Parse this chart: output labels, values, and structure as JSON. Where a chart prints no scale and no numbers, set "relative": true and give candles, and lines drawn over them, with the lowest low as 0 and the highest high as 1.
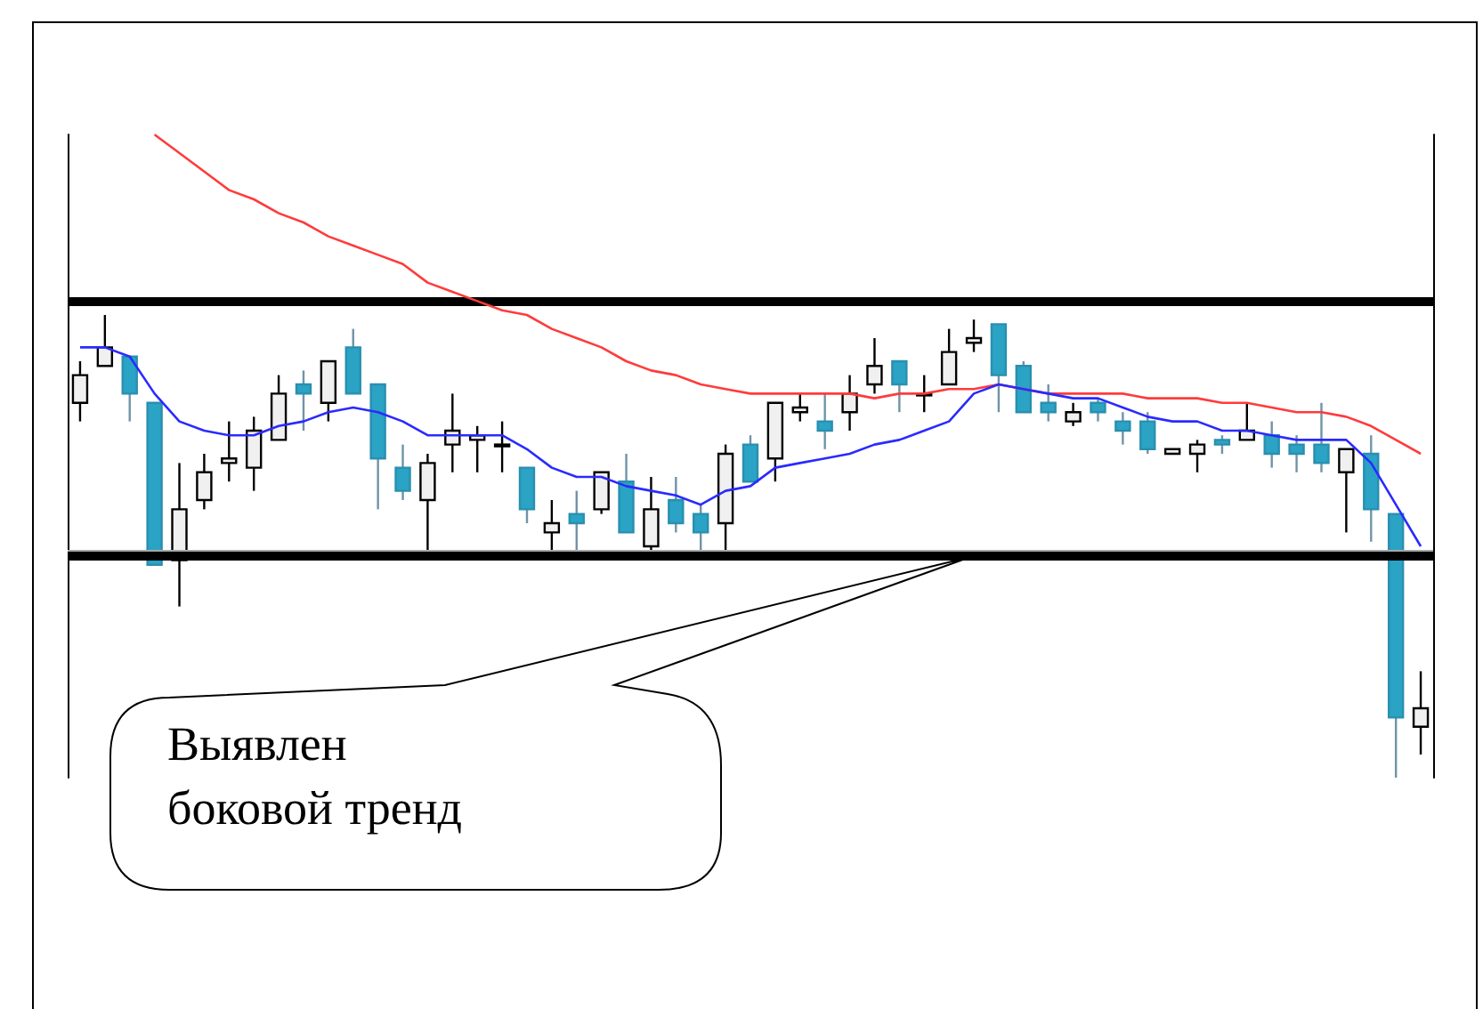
{
  "chart_data": [
    {
      "type": "candlestick",
      "relative": true,
      "categories": [
        null,
        null,
        null,
        null,
        null,
        null,
        null,
        null,
        null,
        null,
        null,
        null,
        null,
        null,
        null,
        null,
        null,
        null,
        null,
        null,
        null,
        null,
        null,
        null,
        null,
        null,
        null,
        null,
        null,
        null,
        null,
        null,
        null,
        null,
        null,
        null,
        null,
        null,
        null,
        null,
        null,
        null,
        null,
        null,
        null,
        null,
        null,
        null,
        null,
        null,
        null,
        null,
        null,
        null,
        null
      ],
      "ohlc": [
        [
          0.81,
          0.9,
          0.77,
          0.87
        ],
        [
          0.89,
          1.0,
          0.89,
          0.93
        ],
        [
          0.91,
          0.91,
          0.77,
          0.83
        ],
        [
          0.81,
          0.81,
          0.46,
          0.46
        ],
        [
          0.47,
          0.68,
          0.37,
          0.58
        ],
        [
          0.6,
          0.7,
          0.58,
          0.66
        ],
        [
          0.68,
          0.77,
          0.64,
          0.69
        ],
        [
          0.67,
          0.78,
          0.62,
          0.75
        ],
        [
          0.73,
          0.87,
          0.73,
          0.83
        ],
        [
          0.85,
          0.88,
          0.75,
          0.83
        ],
        [
          0.81,
          0.9,
          0.77,
          0.9
        ],
        [
          0.93,
          0.97,
          0.83,
          0.83
        ],
        [
          0.85,
          0.85,
          0.58,
          0.69
        ],
        [
          0.67,
          0.72,
          0.6,
          0.62
        ],
        [
          0.6,
          0.7,
          0.49,
          0.68
        ],
        [
          0.72,
          0.83,
          0.66,
          0.75
        ],
        [
          0.73,
          0.76,
          0.66,
          0.74
        ],
        [
          0.72,
          0.77,
          0.66,
          0.72
        ],
        [
          0.67,
          0.67,
          0.55,
          0.58
        ],
        [
          0.53,
          0.6,
          0.49,
          0.55
        ],
        [
          0.57,
          0.62,
          0.49,
          0.55
        ],
        [
          0.58,
          0.66,
          0.57,
          0.66
        ],
        [
          0.64,
          0.7,
          0.53,
          0.53
        ],
        [
          0.5,
          0.65,
          0.49,
          0.58
        ],
        [
          0.6,
          0.65,
          0.53,
          0.55
        ],
        [
          0.57,
          0.59,
          0.49,
          0.53
        ],
        [
          0.55,
          0.72,
          0.49,
          0.7
        ],
        [
          0.72,
          0.74,
          0.64,
          0.64
        ],
        [
          0.69,
          0.81,
          0.64,
          0.81
        ],
        [
          0.79,
          0.83,
          0.77,
          0.8
        ],
        [
          0.77,
          0.83,
          0.71,
          0.75
        ],
        [
          0.79,
          0.87,
          0.75,
          0.83
        ],
        [
          0.85,
          0.95,
          0.83,
          0.89
        ],
        [
          0.9,
          0.9,
          0.79,
          0.85
        ],
        [
          0.83,
          0.87,
          0.79,
          0.83
        ],
        [
          0.85,
          0.97,
          0.85,
          0.92
        ],
        [
          0.94,
          0.99,
          0.92,
          0.95
        ],
        [
          0.98,
          0.98,
          0.79,
          0.87
        ],
        [
          0.89,
          0.9,
          0.79,
          0.79
        ],
        [
          0.81,
          0.85,
          0.77,
          0.79
        ],
        [
          0.77,
          0.81,
          0.76,
          0.79
        ],
        [
          0.81,
          0.82,
          0.77,
          0.79
        ],
        [
          0.77,
          0.79,
          0.72,
          0.75
        ],
        [
          0.77,
          0.79,
          0.7,
          0.71
        ],
        [
          0.7,
          0.71,
          0.7,
          0.71
        ],
        [
          0.7,
          0.73,
          0.66,
          0.72
        ],
        [
          0.73,
          0.74,
          0.7,
          0.72
        ],
        [
          0.73,
          0.81,
          0.73,
          0.75
        ],
        [
          0.74,
          0.77,
          0.67,
          0.7
        ],
        [
          0.72,
          0.74,
          0.66,
          0.7
        ],
        [
          0.72,
          0.81,
          0.66,
          0.68
        ],
        [
          0.66,
          0.71,
          0.53,
          0.71
        ],
        [
          0.7,
          0.74,
          0.51,
          0.58
        ],
        [
          0.57,
          0.57,
          0.0,
          0.13
        ],
        [
          0.11,
          0.23,
          0.05,
          0.15
        ]
      ],
      "ref_lines": [
        {
          "axis": "y",
          "value": 0.49,
          "color": "#a8a8a8"
        },
        {
          "axis": "y",
          "value": 1.03,
          "color": "#000000"
        },
        {
          "axis": "y",
          "value": 0.48,
          "color": "#000000"
        }
      ],
      "series": [
        {
          "type": "line",
          "color": "#ff3b3b",
          "values": [
            null,
            null,
            null,
            1.39,
            1.35,
            1.31,
            1.27,
            1.25,
            1.22,
            1.2,
            1.17,
            1.15,
            1.13,
            1.11,
            1.07,
            1.05,
            1.03,
            1.01,
            1.0,
            0.97,
            0.95,
            0.93,
            0.9,
            0.88,
            0.87,
            0.85,
            0.84,
            0.83,
            0.83,
            0.83,
            0.83,
            0.83,
            0.82,
            0.83,
            0.83,
            0.84,
            0.84,
            0.85,
            0.84,
            0.83,
            0.83,
            0.83,
            0.83,
            0.82,
            0.82,
            0.82,
            0.81,
            0.81,
            0.8,
            0.79,
            0.79,
            0.78,
            0.76,
            0.73,
            0.7
          ]
        },
        {
          "type": "line",
          "color": "#2a2aff",
          "values": [
            0.93,
            0.93,
            0.91,
            0.83,
            0.77,
            0.75,
            0.74,
            0.74,
            0.76,
            0.77,
            0.79,
            0.8,
            0.79,
            0.77,
            0.74,
            0.74,
            0.74,
            0.74,
            0.71,
            0.67,
            0.65,
            0.65,
            0.63,
            0.62,
            0.61,
            0.59,
            0.62,
            0.63,
            0.67,
            0.68,
            0.69,
            0.7,
            0.72,
            0.73,
            0.75,
            0.77,
            0.83,
            0.85,
            0.84,
            0.83,
            0.82,
            0.82,
            0.8,
            0.78,
            0.77,
            0.77,
            0.75,
            0.75,
            0.74,
            0.73,
            0.73,
            0.73,
            0.68,
            0.59,
            0.5
          ]
        }
      ],
      "annotations": [
        "Выявлен боковой тренд"
      ]
    }
  ]
}
